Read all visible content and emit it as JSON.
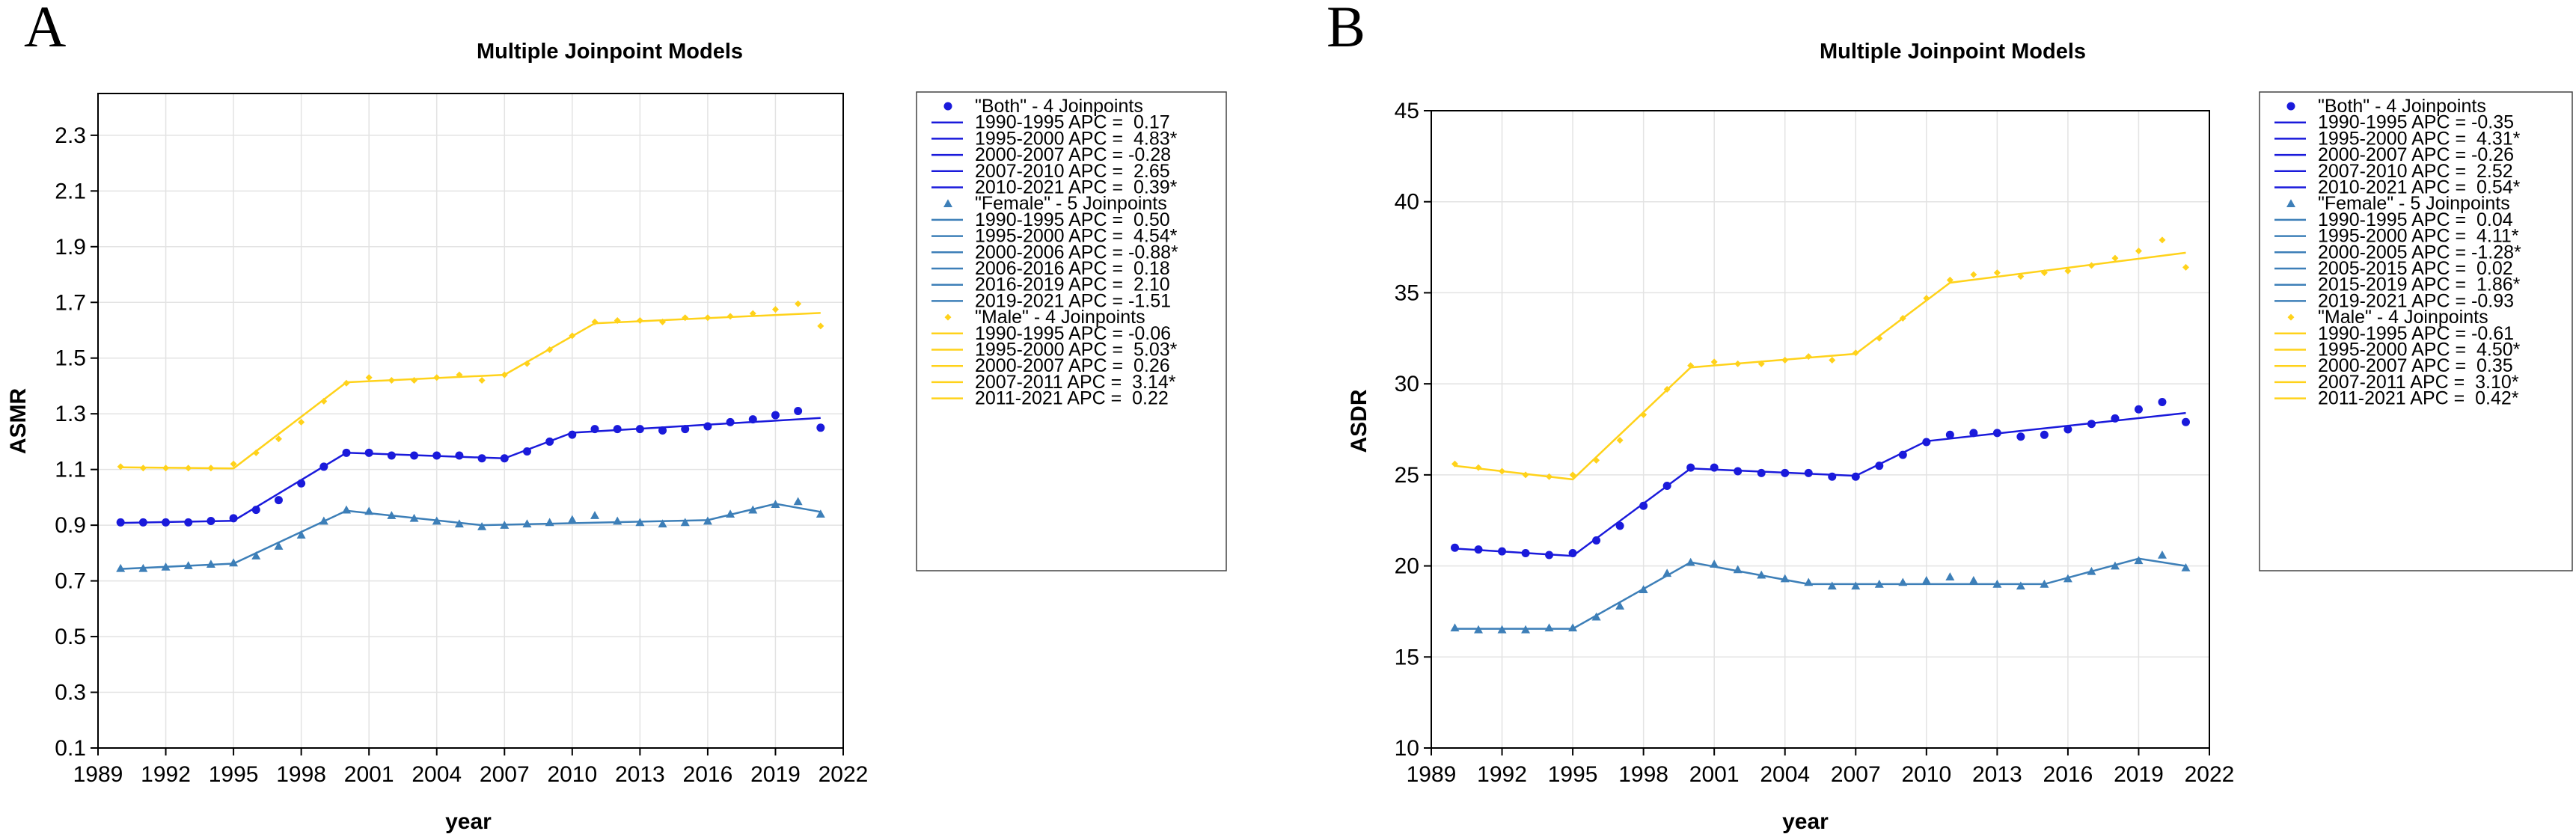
{
  "chart_data": [
    {
      "panel": "A",
      "type": "line",
      "title": "Multiple Joinpoint Models",
      "xlabel": "year",
      "ylabel": "ASMR",
      "xlim": [
        1989,
        2022
      ],
      "ylim": [
        0.1,
        2.45
      ],
      "x_ticks": [
        1989,
        1992,
        1995,
        1998,
        2001,
        2004,
        2007,
        2010,
        2013,
        2016,
        2019,
        2022
      ],
      "y_ticks": [
        0.1,
        0.3,
        0.5,
        0.7,
        0.9,
        1.1,
        1.3,
        1.5,
        1.7,
        1.9,
        2.1,
        2.3
      ],
      "y_tick_labels": [
        "0.1",
        "0.3",
        "0.5",
        "0.7",
        "0.9",
        "1.1",
        "1.3",
        "1.5",
        "1.7",
        "1.9",
        "2.1",
        "2.3"
      ],
      "grid": true,
      "series": [
        {
          "name": "\"Both\" - 4 Joinpoints",
          "color": "#1a1adb",
          "marker": "circle",
          "x": [
            1990,
            1991,
            1992,
            1993,
            1994,
            1995,
            1996,
            1997,
            1998,
            1999,
            2000,
            2001,
            2002,
            2003,
            2004,
            2005,
            2006,
            2007,
            2008,
            2009,
            2010,
            2011,
            2012,
            2013,
            2014,
            2015,
            2016,
            2017,
            2018,
            2019,
            2020,
            2021
          ],
          "y": [
            0.91,
            0.91,
            0.91,
            0.91,
            0.915,
            0.925,
            0.955,
            0.99,
            1.05,
            1.11,
            1.16,
            1.16,
            1.15,
            1.15,
            1.15,
            1.15,
            1.14,
            1.14,
            1.165,
            1.2,
            1.225,
            1.245,
            1.245,
            1.245,
            1.24,
            1.245,
            1.255,
            1.27,
            1.28,
            1.295,
            1.31,
            1.25
          ],
          "fit_x": [
            1990,
            1995,
            2000,
            2007,
            2010,
            2021
          ],
          "fit_y": [
            0.908,
            0.916,
            1.16,
            1.14,
            1.232,
            1.285
          ],
          "segments": [
            {
              "label": "1990-1995 APC =  0.17"
            },
            {
              "label": "1995-2000 APC =  4.83*"
            },
            {
              "label": "2000-2007 APC = -0.28"
            },
            {
              "label": "2007-2010 APC =  2.65"
            },
            {
              "label": "2010-2021 APC =  0.39*"
            }
          ]
        },
        {
          "name": "\"Female\" - 5 Joinpoints",
          "color": "#3d7fb8",
          "marker": "triangle",
          "x": [
            1990,
            1991,
            1992,
            1993,
            1994,
            1995,
            1996,
            1997,
            1998,
            1999,
            2000,
            2001,
            2002,
            2003,
            2004,
            2005,
            2006,
            2007,
            2008,
            2009,
            2010,
            2011,
            2012,
            2013,
            2014,
            2015,
            2016,
            2017,
            2018,
            2019,
            2020,
            2021
          ],
          "y": [
            0.745,
            0.745,
            0.75,
            0.755,
            0.76,
            0.765,
            0.79,
            0.825,
            0.865,
            0.915,
            0.955,
            0.95,
            0.935,
            0.925,
            0.915,
            0.905,
            0.895,
            0.9,
            0.905,
            0.91,
            0.92,
            0.935,
            0.915,
            0.91,
            0.905,
            0.91,
            0.915,
            0.94,
            0.955,
            0.975,
            0.985,
            0.94
          ],
          "fit_x": [
            1990,
            1995,
            2000,
            2006,
            2016,
            2019,
            2021
          ],
          "fit_y": [
            0.743,
            0.762,
            0.952,
            0.9,
            0.918,
            0.977,
            0.948
          ],
          "segments": [
            {
              "label": "1990-1995 APC =  0.50"
            },
            {
              "label": "1995-2000 APC =  4.54*"
            },
            {
              "label": "2000-2006 APC = -0.88*"
            },
            {
              "label": "2006-2016 APC =  0.18"
            },
            {
              "label": "2016-2019 APC =  2.10"
            },
            {
              "label": "2019-2021 APC = -1.51"
            }
          ]
        },
        {
          "name": "\"Male\" - 4 Joinpoints",
          "color": "#ffd21a",
          "marker": "diamond",
          "x": [
            1990,
            1991,
            1992,
            1993,
            1994,
            1995,
            1996,
            1997,
            1998,
            1999,
            2000,
            2001,
            2002,
            2003,
            2004,
            2005,
            2006,
            2007,
            2008,
            2009,
            2010,
            2011,
            2012,
            2013,
            2014,
            2015,
            2016,
            2017,
            2018,
            2019,
            2020,
            2021
          ],
          "y": [
            1.11,
            1.105,
            1.105,
            1.105,
            1.105,
            1.12,
            1.16,
            1.21,
            1.27,
            1.345,
            1.41,
            1.43,
            1.42,
            1.42,
            1.43,
            1.44,
            1.42,
            1.44,
            1.48,
            1.53,
            1.58,
            1.63,
            1.635,
            1.635,
            1.63,
            1.645,
            1.645,
            1.65,
            1.66,
            1.675,
            1.695,
            1.615
          ],
          "fit_x": [
            1990,
            1995,
            2000,
            2007,
            2011,
            2021
          ],
          "fit_y": [
            1.108,
            1.104,
            1.413,
            1.44,
            1.625,
            1.662
          ],
          "segments": [
            {
              "label": "1990-1995 APC = -0.06"
            },
            {
              "label": "1995-2000 APC =  5.03*"
            },
            {
              "label": "2000-2007 APC =  0.26"
            },
            {
              "label": "2007-2011 APC =  3.14*"
            },
            {
              "label": "2011-2021 APC =  0.22"
            }
          ]
        }
      ]
    },
    {
      "panel": "B",
      "type": "line",
      "title": "Multiple Joinpoint Models",
      "xlabel": "year",
      "ylabel": "ASDR",
      "xlim": [
        1989,
        2022
      ],
      "ylim": [
        10,
        45
      ],
      "x_ticks": [
        1989,
        1992,
        1995,
        1998,
        2001,
        2004,
        2007,
        2010,
        2013,
        2016,
        2019,
        2022
      ],
      "y_ticks": [
        10,
        15,
        20,
        25,
        30,
        35,
        40,
        45
      ],
      "y_tick_labels": [
        "10",
        "15",
        "20",
        "25",
        "30",
        "35",
        "40",
        "45"
      ],
      "grid": true,
      "series": [
        {
          "name": "\"Both\" - 4 Joinpoints",
          "color": "#1a1adb",
          "marker": "circle",
          "x": [
            1990,
            1991,
            1992,
            1993,
            1994,
            1995,
            1996,
            1997,
            1998,
            1999,
            2000,
            2001,
            2002,
            2003,
            2004,
            2005,
            2006,
            2007,
            2008,
            2009,
            2010,
            2011,
            2012,
            2013,
            2014,
            2015,
            2016,
            2017,
            2018,
            2019,
            2020,
            2021
          ],
          "y": [
            21.0,
            20.9,
            20.8,
            20.7,
            20.6,
            20.7,
            21.4,
            22.2,
            23.3,
            24.4,
            25.4,
            25.4,
            25.2,
            25.1,
            25.1,
            25.1,
            24.9,
            24.9,
            25.5,
            26.1,
            26.8,
            27.2,
            27.3,
            27.3,
            27.1,
            27.2,
            27.5,
            27.8,
            28.1,
            28.6,
            29.0,
            27.9
          ],
          "fit_x": [
            1990,
            1995,
            2000,
            2007,
            2010,
            2021
          ],
          "fit_y": [
            20.95,
            20.55,
            25.35,
            24.95,
            26.85,
            28.4
          ],
          "segments": [
            {
              "label": "1990-1995 APC = -0.35"
            },
            {
              "label": "1995-2000 APC =  4.31*"
            },
            {
              "label": "2000-2007 APC = -0.26"
            },
            {
              "label": "2007-2010 APC =  2.52"
            },
            {
              "label": "2010-2021 APC =  0.54*"
            }
          ]
        },
        {
          "name": "\"Female\" - 5 Joinpoints",
          "color": "#3d7fb8",
          "marker": "triangle",
          "x": [
            1990,
            1991,
            1992,
            1993,
            1994,
            1995,
            1996,
            1997,
            1998,
            1999,
            2000,
            2001,
            2002,
            2003,
            2004,
            2005,
            2006,
            2007,
            2008,
            2009,
            2010,
            2011,
            2012,
            2013,
            2014,
            2015,
            2016,
            2017,
            2018,
            2019,
            2020,
            2021
          ],
          "y": [
            16.6,
            16.5,
            16.5,
            16.5,
            16.6,
            16.6,
            17.2,
            17.8,
            18.7,
            19.6,
            20.2,
            20.1,
            19.8,
            19.5,
            19.3,
            19.1,
            18.9,
            18.9,
            19.0,
            19.1,
            19.2,
            19.4,
            19.2,
            19.0,
            18.9,
            19.0,
            19.3,
            19.7,
            20.0,
            20.3,
            20.6,
            19.9
          ],
          "fit_x": [
            1990,
            1995,
            2000,
            2005,
            2015,
            2019,
            2021
          ],
          "fit_y": [
            16.55,
            16.55,
            20.2,
            19.0,
            19.0,
            20.4,
            20.0
          ],
          "segments": [
            {
              "label": "1990-1995 APC =  0.04"
            },
            {
              "label": "1995-2000 APC =  4.11*"
            },
            {
              "label": "2000-2005 APC = -1.28*"
            },
            {
              "label": "2005-2015 APC =  0.02"
            },
            {
              "label": "2015-2019 APC =  1.86*"
            },
            {
              "label": "2019-2021 APC = -0.93"
            }
          ]
        },
        {
          "name": "\"Male\" - 4 Joinpoints",
          "color": "#ffd21a",
          "marker": "diamond",
          "x": [
            1990,
            1991,
            1992,
            1993,
            1994,
            1995,
            1996,
            1997,
            1998,
            1999,
            2000,
            2001,
            2002,
            2003,
            2004,
            2005,
            2006,
            2007,
            2008,
            2009,
            2010,
            2011,
            2012,
            2013,
            2014,
            2015,
            2016,
            2017,
            2018,
            2019,
            2020,
            2021
          ],
          "y": [
            25.6,
            25.4,
            25.2,
            25.0,
            24.9,
            25.0,
            25.8,
            26.9,
            28.3,
            29.7,
            31.0,
            31.2,
            31.1,
            31.1,
            31.3,
            31.5,
            31.3,
            31.7,
            32.5,
            33.6,
            34.7,
            35.7,
            36.0,
            36.1,
            35.9,
            36.1,
            36.2,
            36.5,
            36.9,
            37.3,
            37.9,
            36.4
          ],
          "fit_x": [
            1990,
            1995,
            2000,
            2007,
            2011,
            2021
          ],
          "fit_y": [
            25.5,
            24.75,
            30.9,
            31.65,
            35.55,
            37.2
          ],
          "segments": [
            {
              "label": "1990-1995 APC = -0.61"
            },
            {
              "label": "1995-2000 APC =  4.50*"
            },
            {
              "label": "2000-2007 APC =  0.35"
            },
            {
              "label": "2007-2011 APC =  3.10*"
            },
            {
              "label": "2011-2021 APC =  0.42*"
            }
          ]
        }
      ]
    }
  ]
}
